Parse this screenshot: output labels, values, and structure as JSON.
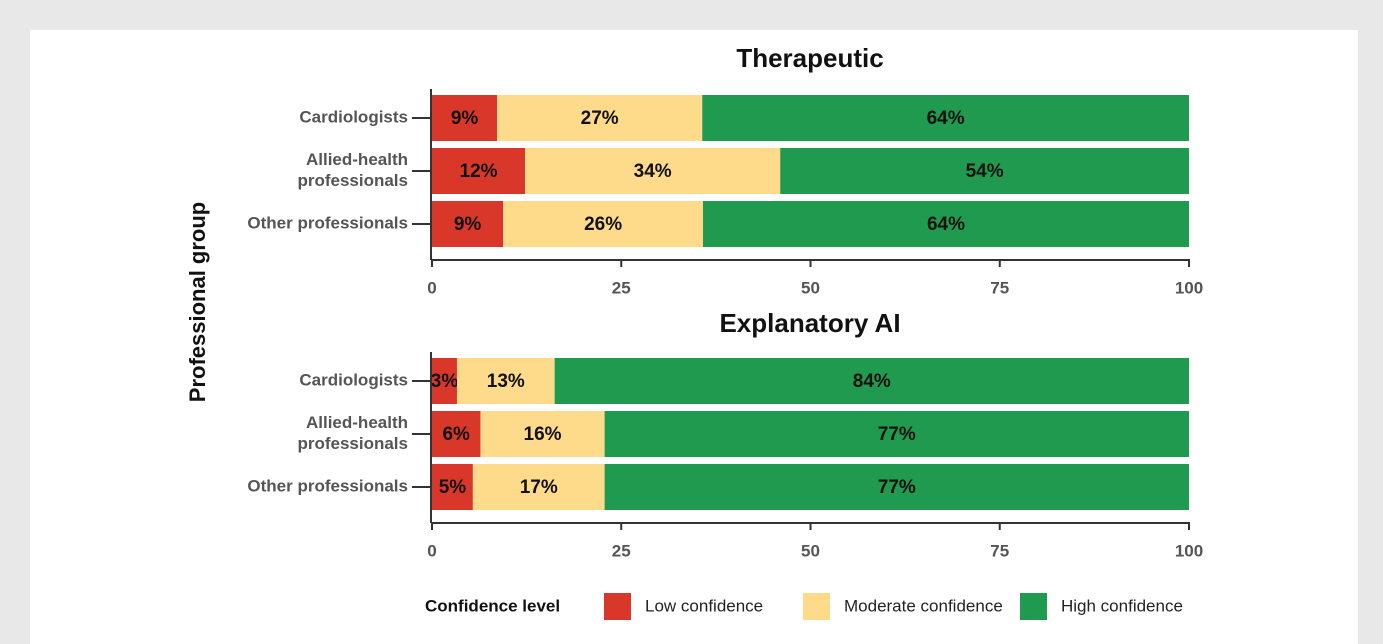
{
  "ylabel": "Professional group",
  "legend_title": "Confidence level",
  "chart_data": [
    {
      "type": "bar",
      "orientation": "horizontal",
      "stacked": true,
      "title": "Therapeutic",
      "categories": [
        "Cardiologists",
        "Allied-health\nprofessionals",
        "Other professionals"
      ],
      "series": [
        {
          "name": "Low confidence",
          "color": "#d9372a",
          "values": [
            8.6,
            12.3,
            9.4
          ],
          "value_labels": [
            "9%",
            "12%",
            "9%"
          ]
        },
        {
          "name": "Moderate confidence",
          "color": "#fddb8a",
          "values": [
            27.1,
            33.7,
            26.4
          ],
          "value_labels": [
            "27%",
            "34%",
            "26%"
          ]
        },
        {
          "name": "High confidence",
          "color": "#1f9a4e",
          "values": [
            64.3,
            54,
            64.2
          ],
          "value_labels": [
            "64%",
            "54%",
            "64%"
          ]
        }
      ],
      "xlim": [
        0,
        100
      ],
      "xticks": [
        0,
        25,
        50,
        75,
        100
      ]
    },
    {
      "type": "bar",
      "orientation": "horizontal",
      "stacked": true,
      "title": "Explanatory AI",
      "categories": [
        "Cardiologists",
        "Allied-health\nprofessionals",
        "Other professionals"
      ],
      "series": [
        {
          "values": [
            3.3,
            6.4,
            5.4
          ],
          "value_labels": [
            "3%",
            "6%",
            "5%"
          ]
        },
        {
          "values": [
            12.9,
            16.4,
            17.4
          ],
          "value_labels": [
            "13%",
            "16%",
            "17%"
          ]
        },
        {
          "values": [
            83.8,
            77.2,
            77.2
          ],
          "value_labels": [
            "84%",
            "77%",
            "77%"
          ]
        }
      ],
      "xlim": [
        0,
        100
      ],
      "xticks": [
        0,
        25,
        50,
        75,
        100
      ]
    }
  ]
}
